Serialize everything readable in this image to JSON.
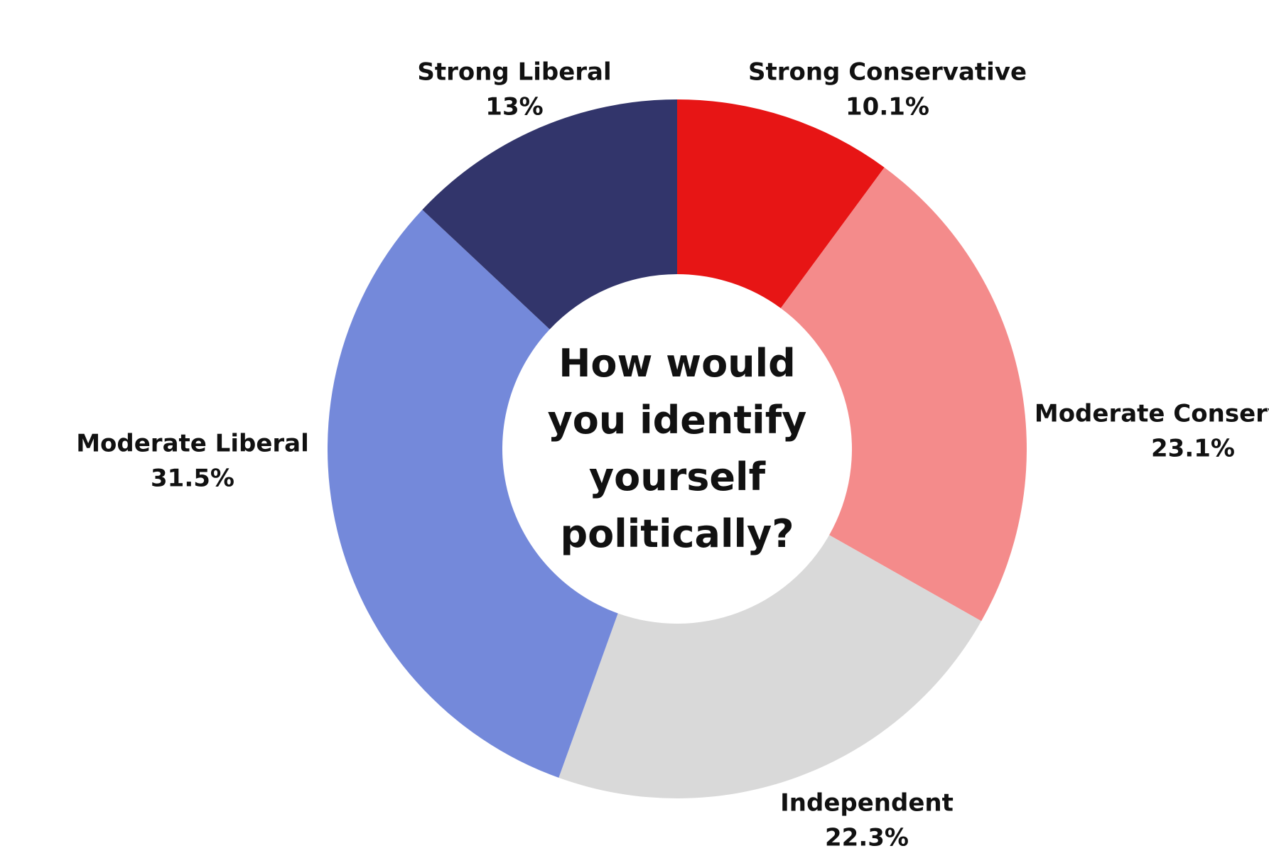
{
  "chart_data": {
    "type": "donut",
    "title": "How would you identify yourself politically?",
    "categories": [
      "Strong Conservative",
      "Moderate Conservative",
      "Independent",
      "Moderate Liberal",
      "Strong Liberal"
    ],
    "values": [
      10.1,
      23.1,
      22.3,
      31.5,
      13
    ],
    "value_labels": [
      "10.1%",
      "23.1%",
      "22.3%",
      "31.5%",
      "13%"
    ],
    "colors": [
      "#e71515",
      "#f48b8b",
      "#d9d9d9",
      "#7489da",
      "#32356b"
    ]
  }
}
